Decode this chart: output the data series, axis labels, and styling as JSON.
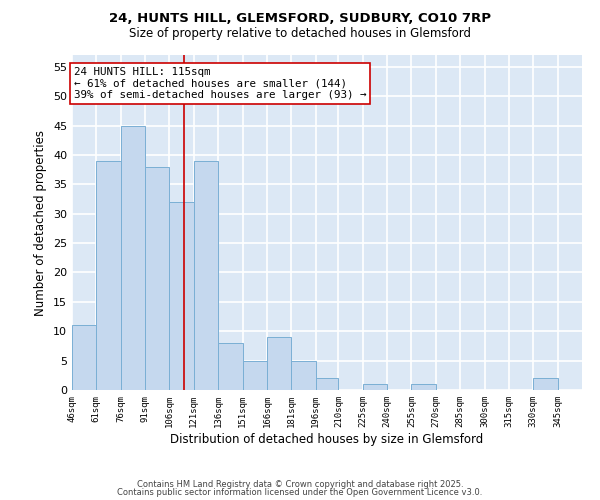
{
  "title1": "24, HUNTS HILL, GLEMSFORD, SUDBURY, CO10 7RP",
  "title2": "Size of property relative to detached houses in Glemsford",
  "xlabel": "Distribution of detached houses by size in Glemsford",
  "ylabel": "Number of detached properties",
  "bin_labels": [
    "46sqm",
    "61sqm",
    "76sqm",
    "91sqm",
    "106sqm",
    "121sqm",
    "136sqm",
    "151sqm",
    "166sqm",
    "181sqm",
    "196sqm",
    "210sqm",
    "225sqm",
    "240sqm",
    "255sqm",
    "270sqm",
    "285sqm",
    "300sqm",
    "315sqm",
    "330sqm",
    "345sqm"
  ],
  "bin_edges": [
    46,
    61,
    76,
    91,
    106,
    121,
    136,
    151,
    166,
    181,
    196,
    210,
    225,
    240,
    255,
    270,
    285,
    300,
    315,
    330,
    345,
    360
  ],
  "counts": [
    11,
    39,
    45,
    38,
    32,
    39,
    8,
    5,
    9,
    5,
    2,
    0,
    1,
    0,
    1,
    0,
    0,
    0,
    0,
    2,
    0
  ],
  "bar_color": "#c5d8ee",
  "bar_edge_color": "#7aafd4",
  "bg_color": "#dce8f5",
  "grid_color": "#ffffff",
  "ref_line_x": 115,
  "ref_line_color": "#cc0000",
  "annotation_line1": "24 HUNTS HILL: 115sqm",
  "annotation_line2": "← 61% of detached houses are smaller (144)",
  "annotation_line3": "39% of semi-detached houses are larger (93) →",
  "annotation_box_color": "#ffffff",
  "annotation_box_edge": "#cc0000",
  "ylim": [
    0,
    57
  ],
  "yticks": [
    0,
    5,
    10,
    15,
    20,
    25,
    30,
    35,
    40,
    45,
    50,
    55
  ],
  "footer1": "Contains HM Land Registry data © Crown copyright and database right 2025.",
  "footer2": "Contains public sector information licensed under the Open Government Licence v3.0."
}
